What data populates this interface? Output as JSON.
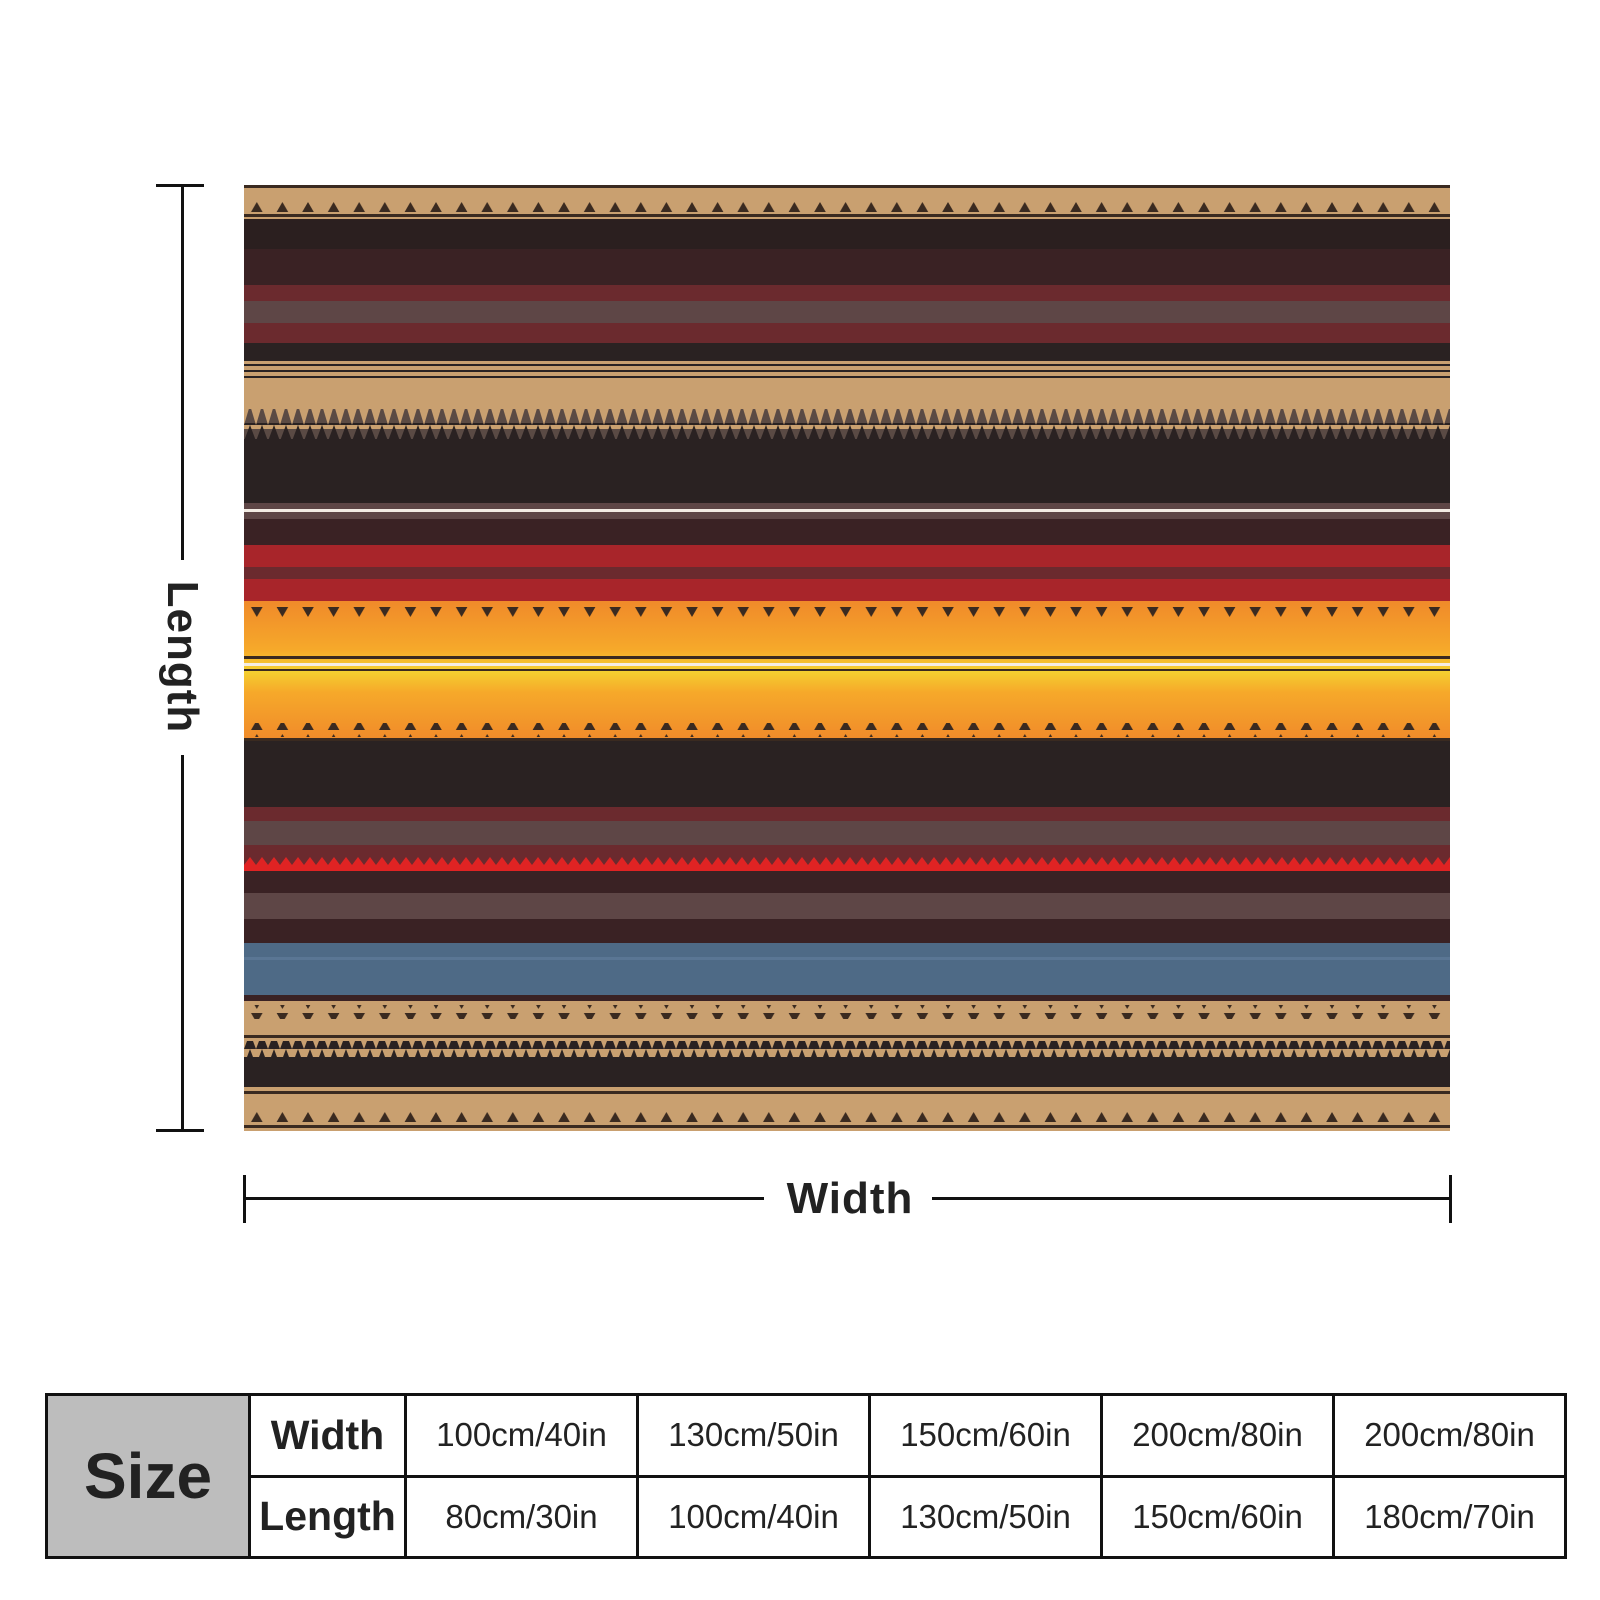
{
  "labels": {
    "length": "Length",
    "width": "Width"
  },
  "blanket": {
    "pattern": "horizontal-serape-stripes",
    "colors": [
      "#c9a070",
      "#2b1f1f",
      "#4a2326",
      "#6b2a2e",
      "#5e4646",
      "#2a2222",
      "#a8252a",
      "#f08a2a",
      "#f4c430",
      "#e02323",
      "#4e6a86"
    ]
  },
  "size_table": {
    "title": "Size",
    "rows": [
      {
        "label": "Width",
        "values": [
          "100cm/40in",
          "130cm/50in",
          "150cm/60in",
          "200cm/80in",
          "200cm/80in"
        ]
      },
      {
        "label": "Length",
        "values": [
          "80cm/30in",
          "100cm/40in",
          "130cm/50in",
          "150cm/60in",
          "180cm/70in"
        ]
      }
    ]
  }
}
